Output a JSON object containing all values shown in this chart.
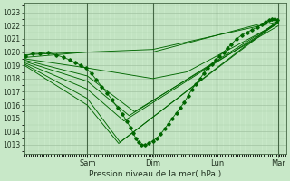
{
  "bg_color": "#c8e8c8",
  "plot_bg_color": "#c8e8c8",
  "grid_major_color": "#99bb99",
  "grid_minor_color": "#aaccaa",
  "line_color": "#006600",
  "ylabel_ticks": [
    1013,
    1014,
    1015,
    1016,
    1017,
    1018,
    1019,
    1020,
    1021,
    1022,
    1023
  ],
  "ylim": [
    1012.3,
    1023.7
  ],
  "xlabel": "Pression niveau de la mer( hPa )",
  "xtick_labels": [
    "Sam",
    "Dim",
    "Lun",
    "Mar"
  ],
  "xtick_positions": [
    0.24,
    0.49,
    0.735,
    0.97
  ],
  "xvline_positions": [
    0.24,
    0.49,
    0.735,
    0.97
  ],
  "lines": [
    {
      "x": [
        0.0,
        0.24,
        0.49,
        0.97
      ],
      "y": [
        1019.8,
        1020.0,
        1020.2,
        1022.3
      ]
    },
    {
      "x": [
        0.0,
        0.24,
        0.49,
        0.97
      ],
      "y": [
        1019.6,
        1020.0,
        1020.0,
        1022.5
      ]
    },
    {
      "x": [
        0.0,
        0.24,
        0.49,
        0.62,
        0.97
      ],
      "y": [
        1019.5,
        1018.8,
        1018.0,
        1018.5,
        1022.2
      ]
    },
    {
      "x": [
        0.0,
        0.24,
        0.42,
        0.735,
        0.97
      ],
      "y": [
        1019.4,
        1018.2,
        1015.5,
        1019.3,
        1022.0
      ]
    },
    {
      "x": [
        0.0,
        0.24,
        0.4,
        0.97
      ],
      "y": [
        1019.3,
        1017.8,
        1015.2,
        1022.3
      ]
    },
    {
      "x": [
        0.0,
        0.24,
        0.38,
        0.97
      ],
      "y": [
        1019.2,
        1017.2,
        1014.8,
        1022.2
      ]
    },
    {
      "x": [
        0.0,
        0.24,
        0.365,
        0.97
      ],
      "y": [
        1019.1,
        1016.5,
        1013.2,
        1022.3
      ]
    },
    {
      "x": [
        0.0,
        0.24,
        0.36,
        0.97
      ],
      "y": [
        1019.0,
        1016.0,
        1013.1,
        1022.4
      ]
    }
  ],
  "dotted_line": {
    "x": [
      0.005,
      0.03,
      0.06,
      0.09,
      0.12,
      0.15,
      0.175,
      0.195,
      0.215,
      0.235,
      0.255,
      0.275,
      0.295,
      0.315,
      0.335,
      0.355,
      0.375,
      0.39,
      0.405,
      0.415,
      0.425,
      0.435,
      0.445,
      0.46,
      0.475,
      0.49,
      0.505,
      0.52,
      0.535,
      0.55,
      0.565,
      0.58,
      0.595,
      0.61,
      0.625,
      0.64,
      0.655,
      0.67,
      0.685,
      0.7,
      0.715,
      0.73,
      0.745,
      0.76,
      0.775,
      0.79,
      0.81,
      0.83,
      0.85,
      0.87,
      0.89,
      0.905,
      0.92,
      0.935,
      0.945,
      0.955,
      0.965
    ],
    "y": [
      1019.7,
      1019.9,
      1019.9,
      1020.0,
      1019.8,
      1019.6,
      1019.4,
      1019.2,
      1019.0,
      1018.8,
      1018.4,
      1017.9,
      1017.4,
      1016.9,
      1016.4,
      1015.8,
      1015.3,
      1014.8,
      1014.3,
      1013.9,
      1013.5,
      1013.2,
      1013.0,
      1013.0,
      1013.1,
      1013.3,
      1013.5,
      1013.8,
      1014.2,
      1014.6,
      1015.0,
      1015.4,
      1015.8,
      1016.2,
      1016.7,
      1017.2,
      1017.6,
      1018.0,
      1018.4,
      1018.8,
      1019.1,
      1019.4,
      1019.7,
      1020.0,
      1020.3,
      1020.6,
      1021.0,
      1021.3,
      1021.5,
      1021.7,
      1021.9,
      1022.1,
      1022.3,
      1022.4,
      1022.5,
      1022.5,
      1022.4
    ]
  }
}
